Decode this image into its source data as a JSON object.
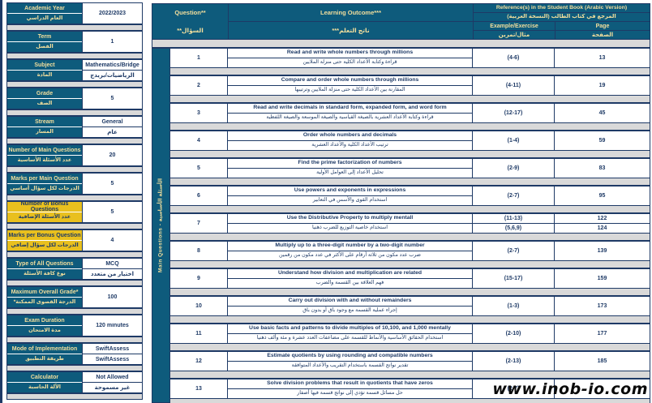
{
  "colors": {
    "teal": "#0e5b7c",
    "navy": "#1e3a66",
    "gold": "#e9c01e",
    "separator_gray": "#d9d9d9",
    "header_text": "#f3df9d"
  },
  "watermark": "www.inob-io.com",
  "sidebar": {
    "blocks": [
      {
        "label_en": "Academic Year",
        "label_ar": "العام الدراسي",
        "value": "2022/2023"
      },
      {
        "label_en": "Term",
        "label_ar": "الفصل",
        "value": "1"
      },
      {
        "label_en": "Subject",
        "label_ar": "المادة",
        "value_en": "Mathematics/Bridge",
        "value_ar": "الرياضيات/بريدج"
      },
      {
        "label_en": "Grade",
        "label_ar": "الصف",
        "value": "5"
      },
      {
        "label_en": "Stream",
        "label_ar": "المسار",
        "value_en": "General",
        "value_ar": "عام"
      },
      {
        "label_en": "Number of Main Questions",
        "label_ar": "عدد الأسئلة الأساسية",
        "value": "20"
      },
      {
        "label_en": "Marks per Main Question",
        "label_ar": "الدرجات لكل سؤال أساسي",
        "value": "5"
      },
      {
        "label_en": "Number of Bonus Questions",
        "label_ar": "عدد الأسئلة الإضافية",
        "value": "5"
      },
      {
        "label_en": "Marks per Bonus Question",
        "label_ar": "الدرجات لكل سؤال إضافي",
        "value": "4"
      },
      {
        "label_en": "Type of All Questions",
        "label_ar": "نوع كافة الأسئلة",
        "value_en": "MCQ",
        "value_ar": "اختيار من متعدد"
      },
      {
        "label_en": "Maximum Overall Grade*",
        "label_ar": "الدرجة القصوى الممكنة*",
        "value": "100"
      },
      {
        "label_en": "Exam Duration",
        "label_ar": "مدة الامتحان",
        "value": "120 minutes"
      },
      {
        "label_en": "Mode of Implementation",
        "label_ar": "طريقة التطبيق",
        "value_en": "SwiftAssess",
        "value_ar": "SwiftAssess"
      },
      {
        "label_en": "Calculator",
        "label_ar": "الآلة الحاسبة",
        "value_en": "Not Allowed",
        "value_ar": "غير مسموحة"
      }
    ]
  },
  "table": {
    "header": {
      "question_en": "Question**",
      "question_ar": "السؤال**",
      "outcome_en": "Learning Outcome***",
      "outcome_ar": "ناتج التعلم***",
      "ref_en": "Reference(s) in the Student Book (Arabic  Version)",
      "ref_ar": "المرجع في كتاب الطالب (النسخة العربية)",
      "example_en": "Example/Exercise",
      "example_ar": "مثال/تمرين",
      "page_en": "Page",
      "page_ar": "الصفحة"
    },
    "group_label": "Main Questions - الأسئلة الأساسية",
    "rows": [
      {
        "num": "1",
        "en": "Read and write whole numbers through millions",
        "ar": "قراءة وكتابة الأعداد الكلية حتى منزلة الملايين",
        "ex": "(4-6)",
        "page": "13"
      },
      {
        "num": "2",
        "en": "Compare and order whole numbers through millions",
        "ar": "المقارنة بين الأعداد الكلية حتى منزلة الملايين وترتيبها",
        "ex": "(4-11)",
        "page": "19"
      },
      {
        "num": "3",
        "en": "Read and write decimals in standard form, expanded form, and word form",
        "ar": "قراءة وكتابة الأعداد العشرية بالصيغة القياسية والصيغة الموسعة والصيغة اللفظية",
        "ex": "(12-17)",
        "page": "45"
      },
      {
        "num": "4",
        "en": "Order whole numbers and decimals",
        "ar": "ترتيب الأعداد الكلية والأعداد العشرية",
        "ex": "(1-4)",
        "page": "59"
      },
      {
        "num": "5",
        "en": "Find the prime factorization of numbers",
        "ar": "تحليل الأعداد إلى العوامل الأولية",
        "ex": "(2-9)",
        "page": "83"
      },
      {
        "num": "6",
        "en": "Use powers and exponents in expressions",
        "ar": "استخدام القوى والأسس في التعابير",
        "ex": "(2-7)",
        "page": "95"
      },
      {
        "num": "7",
        "en": "Use the Distributive Property to multiply mentall",
        "ar": "استخدام خاصية التوزيع للضرب ذهنيا",
        "ex": "(11-13)",
        "ex2": "(5,6,9)",
        "page": "122",
        "page2": "124"
      },
      {
        "num": "8",
        "en": "Multiply up to a three-digit number by a two-digit number",
        "ar": "ضرب عدد مكون من ثلاثة أرقام على الأكثر في عدد مكون من رقمين",
        "ex": "(2-7)",
        "page": "139"
      },
      {
        "num": "9",
        "en": "Understand how division and multiplication are related",
        "ar": "فهم العلاقة بين القسمة والضرب",
        "ex": "(15-17)",
        "page": "159"
      },
      {
        "num": "10",
        "en": "Carry out division with and without remainders",
        "ar": "إجراء عملية القسمة مع وجود باق أو بدون باق",
        "ex": "(1-3)",
        "page": "173"
      },
      {
        "num": "11",
        "en": "Use basic facts and patterns to divide multiples of 10,100, and 1,000 mentally",
        "ar": "استخدام الحقائق الأساسية والأنماط للقسمة على مضاعفات العدد عشرة و مئة وألف ذهنيا",
        "ex": "(2-10)",
        "page": "177"
      },
      {
        "num": "12",
        "en": "Estimate quotients by using rounding and compatible numbers",
        "ar": "تقدير نواتج القسمة باستخدام التقريب والأعداد المتوافقة",
        "ex": "(2-13)",
        "page": "185"
      },
      {
        "num": "13",
        "en": "Solve division problems that result in quotients that have zeros",
        "ar": "حل مسائل قسمة تؤدي إلى نواتج قسمة فيها أصفار",
        "ex": "(2-7)",
        "page": ""
      }
    ]
  }
}
